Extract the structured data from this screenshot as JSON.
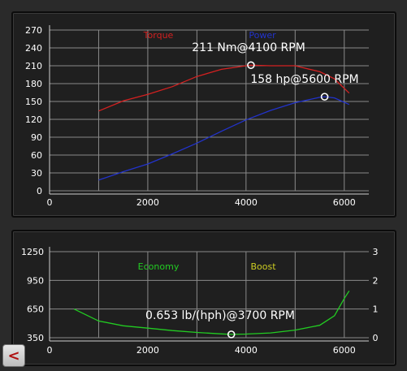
{
  "chart_data": [
    {
      "type": "line",
      "title": "",
      "xlabel": "",
      "ylabel": "",
      "xlim": [
        0,
        6500
      ],
      "ylim": [
        0,
        270
      ],
      "x_ticks": [
        "0",
        "2000",
        "4000",
        "6000"
      ],
      "y_ticks": [
        "0",
        "30",
        "60",
        "90",
        "120",
        "150",
        "180",
        "210",
        "240",
        "270"
      ],
      "grid": true,
      "legend_position": "top-center",
      "series": [
        {
          "name": "Torque",
          "color": "#d42020",
          "x": [
            1000,
            1500,
            2000,
            2500,
            3000,
            3500,
            4000,
            4100,
            4500,
            5000,
            5500,
            5800,
            6100
          ],
          "y": [
            134,
            151,
            162,
            175,
            192,
            204,
            210,
            211,
            210,
            210,
            200,
            188,
            164
          ]
        },
        {
          "name": "Power",
          "color": "#2233cc",
          "x": [
            1000,
            1500,
            2000,
            2500,
            3000,
            3500,
            4000,
            4500,
            5000,
            5500,
            5600,
            5800,
            6100
          ],
          "y": [
            18,
            32,
            45,
            62,
            80,
            100,
            119,
            135,
            148,
            157,
            158,
            156,
            145
          ]
        }
      ],
      "annotations": [
        {
          "text": "211 Nm@4100 RPM",
          "x": 4100,
          "y": 211
        },
        {
          "text": "158 hp@5600 RPM",
          "x": 5600,
          "y": 158
        }
      ]
    },
    {
      "type": "line",
      "title": "",
      "xlabel": "",
      "ylabel": "",
      "xlim": [
        0,
        6500
      ],
      "ylim": [
        350,
        1250
      ],
      "y2lim": [
        0,
        3
      ],
      "x_ticks": [
        "0",
        "2000",
        "4000",
        "6000"
      ],
      "y_ticks": [
        "350",
        "650",
        "950",
        "1250"
      ],
      "y2_ticks": [
        "0",
        "1",
        "2",
        "3"
      ],
      "grid": true,
      "legend_position": "top-center",
      "series": [
        {
          "name": "Economy",
          "color": "#22cc22",
          "x": [
            500,
            1000,
            1500,
            2000,
            2500,
            3000,
            3500,
            3700,
            4000,
            4500,
            5000,
            5500,
            5800,
            6000,
            6100
          ],
          "y": [
            650,
            525,
            475,
            450,
            425,
            405,
            390,
            385,
            388,
            400,
            430,
            480,
            580,
            760,
            840
          ]
        },
        {
          "name": "Boost",
          "color": "#cccc22",
          "x": [],
          "y": []
        }
      ],
      "annotations": [
        {
          "text": "0.653 lb/(hph)@3700 RPM",
          "x": 3700,
          "y": 385
        }
      ]
    }
  ],
  "back_button": {
    "label": "<"
  }
}
